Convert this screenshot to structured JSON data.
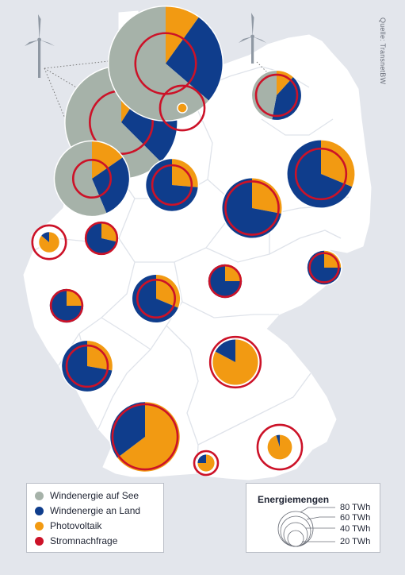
{
  "source": "Quelle: TransnetBW",
  "colors": {
    "offshore": "#a6b2a9",
    "onshore": "#0f3d8c",
    "pv": "#f29a12",
    "demand": "#cc1228",
    "land": "#ffffff",
    "background": "#e3e6ec"
  },
  "legend": {
    "items": [
      {
        "label": "Windenergie auf See",
        "color": "#a6b2a9",
        "icon": "circle"
      },
      {
        "label": "Windenergie an Land",
        "color": "#0f3d8c",
        "icon": "circle"
      },
      {
        "label": "Photovoltaik",
        "color": "#f29a12",
        "icon": "circle"
      },
      {
        "label": "Stromnachfrage",
        "color": "#cc1228",
        "icon": "ring"
      }
    ],
    "energy_title": "Energiemengen",
    "energy_scale": [
      {
        "label": "80 TWh",
        "value": 80
      },
      {
        "label": "60 TWh",
        "value": 60
      },
      {
        "label": "40 TWh",
        "value": 40
      },
      {
        "label": "20 TWh",
        "value": 20
      }
    ]
  },
  "regions": [
    {
      "offshore": 55,
      "onshore": 25,
      "pv": 8,
      "demand": 28
    },
    {
      "offshore": 58,
      "onshore": 24,
      "pv": 9,
      "demand": 26
    },
    {
      "offshore": 22,
      "onshore": 11,
      "pv": 6,
      "demand": 10
    },
    {
      "offshore": 0,
      "onshore": 0,
      "pv": 0.5,
      "demand": 14
    },
    {
      "offshore": 8,
      "onshore": 7,
      "pv": 2,
      "demand": 12
    },
    {
      "offshore": 0,
      "onshore": 14,
      "pv": 5,
      "demand": 11
    },
    {
      "offshore": 0,
      "onshore": 22,
      "pv": 10,
      "demand": 18
    },
    {
      "offshore": 0,
      "onshore": 18,
      "pv": 7,
      "demand": 20
    },
    {
      "offshore": 0,
      "onshore": 0.4,
      "pv": 2.5,
      "demand": 8
    },
    {
      "offshore": 0,
      "onshore": 5,
      "pv": 2,
      "demand": 7
    },
    {
      "offshore": 0,
      "onshore": 6,
      "pv": 2,
      "demand": 6
    },
    {
      "offshore": 0,
      "onshore": 6,
      "pv": 2,
      "demand": 7
    },
    {
      "offshore": 0,
      "onshore": 11,
      "pv": 5,
      "demand": 10
    },
    {
      "offshore": 0,
      "onshore": 6,
      "pv": 2,
      "demand": 7
    },
    {
      "offshore": 0,
      "onshore": 13,
      "pv": 5,
      "demand": 12
    },
    {
      "offshore": 0,
      "onshore": 2.5,
      "pv": 12,
      "demand": 18
    },
    {
      "offshore": 0,
      "onshore": 12,
      "pv": 22,
      "demand": 30
    },
    {
      "offshore": 0,
      "onshore": 0.2,
      "pv": 4,
      "demand": 14
    },
    {
      "offshore": 0,
      "onshore": 0.5,
      "pv": 1.5,
      "demand": 4
    }
  ]
}
